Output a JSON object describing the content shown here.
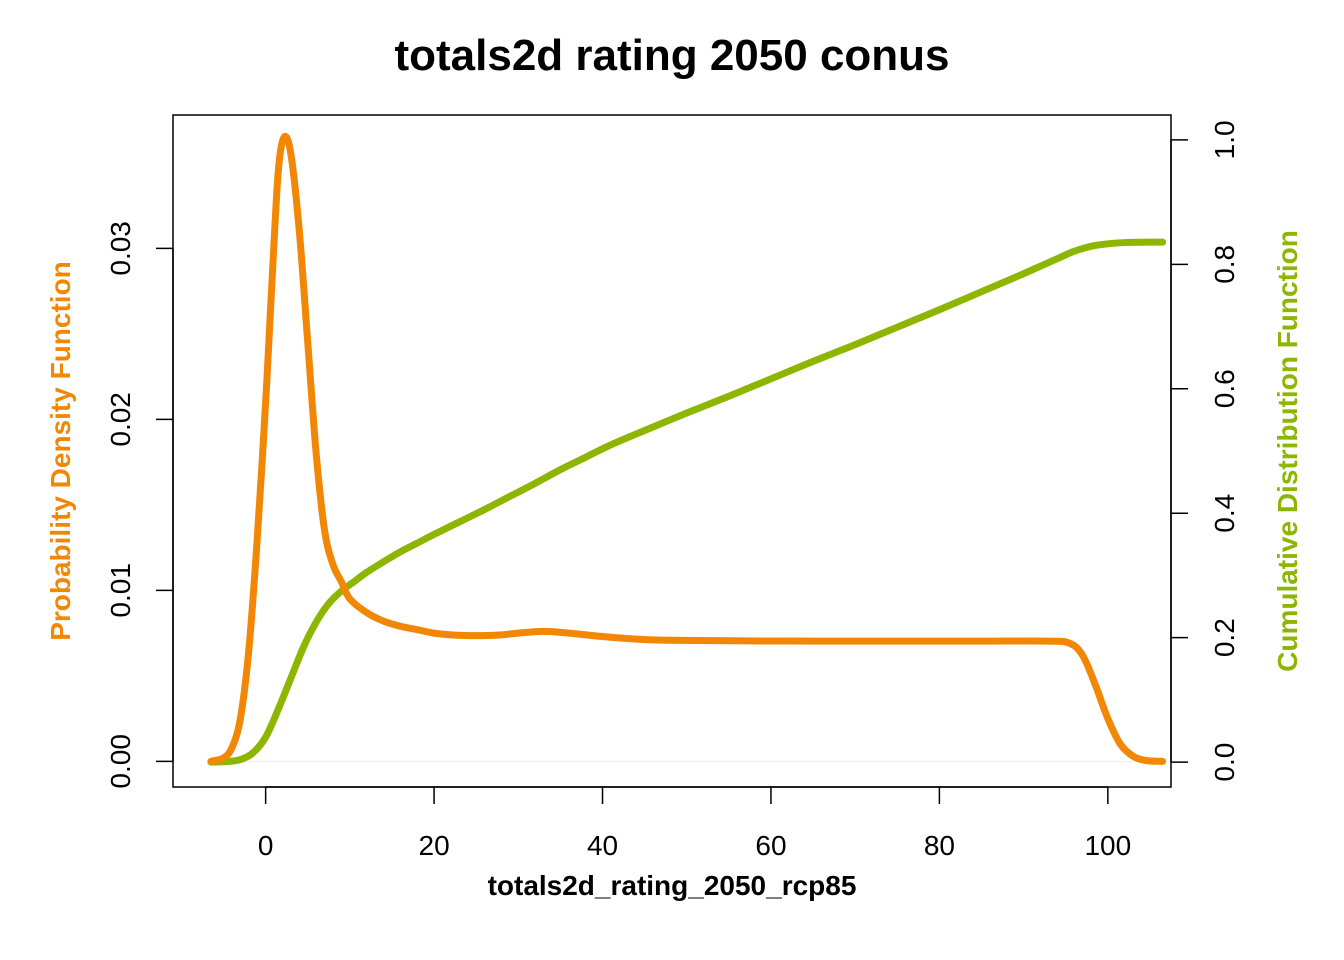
{
  "chart_data": {
    "type": "line",
    "title": "totals2d rating 2050 conus",
    "xlabel": "totals2d_rating_2050_rcp85",
    "ylabel_left": "Probability Density Function",
    "ylabel_right": "Cumulative Distribution Function",
    "xlim": [
      -11,
      107.5
    ],
    "x_ticks": [
      "0",
      "20",
      "40",
      "60",
      "80",
      "100"
    ],
    "x_tick_values": [
      0,
      20,
      40,
      60,
      80,
      100
    ],
    "ylim_left": [
      -0.0015,
      0.0378
    ],
    "y_ticks_left": [
      "0.00",
      "0.01",
      "0.02",
      "0.03"
    ],
    "y_tick_values_left": [
      0,
      0.01,
      0.02,
      0.03
    ],
    "ylim_right": [
      -0.04,
      1.04
    ],
    "y_ticks_right": [
      "0.0",
      "0.2",
      "0.4",
      "0.6",
      "0.8",
      "1.0"
    ],
    "y_tick_values_right": [
      0,
      0.2,
      0.4,
      0.6,
      0.8,
      1.0
    ],
    "colors": {
      "pdf": "#F28705",
      "cdf": "#8DB600",
      "zero_line": "#eeeeee"
    },
    "series": [
      {
        "name": "Probability Density Function",
        "axis": "left",
        "points": [
          [
            -6.5,
            0.0
          ],
          [
            -5,
            0.0002
          ],
          [
            -4,
            0.0008
          ],
          [
            -3,
            0.0025
          ],
          [
            -2,
            0.0065
          ],
          [
            -1,
            0.013
          ],
          [
            0,
            0.021
          ],
          [
            0.8,
            0.0285
          ],
          [
            1.5,
            0.0345
          ],
          [
            2.2,
            0.0365
          ],
          [
            3,
            0.0355
          ],
          [
            4,
            0.031
          ],
          [
            5,
            0.0245
          ],
          [
            6,
            0.018
          ],
          [
            7,
            0.0135
          ],
          [
            8,
            0.0115
          ],
          [
            9,
            0.0105
          ],
          [
            10,
            0.0095
          ],
          [
            12,
            0.0087
          ],
          [
            14,
            0.0082
          ],
          [
            16,
            0.0079
          ],
          [
            18,
            0.0077
          ],
          [
            20,
            0.0075
          ],
          [
            22,
            0.0074
          ],
          [
            25,
            0.00735
          ],
          [
            28,
            0.0074
          ],
          [
            30,
            0.0075
          ],
          [
            33,
            0.0076
          ],
          [
            36,
            0.0075
          ],
          [
            40,
            0.0073
          ],
          [
            44,
            0.00715
          ],
          [
            48,
            0.00708
          ],
          [
            55,
            0.00705
          ],
          [
            65,
            0.00703
          ],
          [
            75,
            0.00703
          ],
          [
            85,
            0.00703
          ],
          [
            93,
            0.00703
          ],
          [
            95.5,
            0.0069
          ],
          [
            97,
            0.0062
          ],
          [
            98.5,
            0.0045
          ],
          [
            100,
            0.0025
          ],
          [
            101.5,
            0.001
          ],
          [
            103,
            0.0003
          ],
          [
            104.5,
            5e-05
          ],
          [
            106.5,
            0.0
          ]
        ]
      },
      {
        "name": "Cumulative Distribution Function",
        "axis": "right",
        "points": [
          [
            -6.5,
            0.0
          ],
          [
            -4.5,
            0.001
          ],
          [
            -3,
            0.004
          ],
          [
            -1.5,
            0.015
          ],
          [
            0,
            0.04
          ],
          [
            1.5,
            0.085
          ],
          [
            3,
            0.135
          ],
          [
            4.5,
            0.185
          ],
          [
            6,
            0.225
          ],
          [
            7.5,
            0.255
          ],
          [
            9,
            0.275
          ],
          [
            10.5,
            0.29
          ],
          [
            12,
            0.305
          ],
          [
            14,
            0.322
          ],
          [
            16,
            0.338
          ],
          [
            18,
            0.352
          ],
          [
            20,
            0.366
          ],
          [
            23,
            0.386
          ],
          [
            26,
            0.406
          ],
          [
            29,
            0.427
          ],
          [
            32,
            0.448
          ],
          [
            35,
            0.47
          ],
          [
            38,
            0.49
          ],
          [
            41,
            0.51
          ],
          [
            45,
            0.533
          ],
          [
            50,
            0.561
          ],
          [
            55,
            0.588
          ],
          [
            60,
            0.616
          ],
          [
            65,
            0.644
          ],
          [
            70,
            0.671
          ],
          [
            75,
            0.699
          ],
          [
            80,
            0.727
          ],
          [
            85,
            0.756
          ],
          [
            90,
            0.785
          ],
          [
            94,
            0.809
          ],
          [
            96,
            0.821
          ],
          [
            98,
            0.829
          ],
          [
            100,
            0.833
          ],
          [
            102,
            0.835
          ],
          [
            104,
            0.8355
          ],
          [
            106.5,
            0.8357
          ]
        ]
      }
    ]
  }
}
